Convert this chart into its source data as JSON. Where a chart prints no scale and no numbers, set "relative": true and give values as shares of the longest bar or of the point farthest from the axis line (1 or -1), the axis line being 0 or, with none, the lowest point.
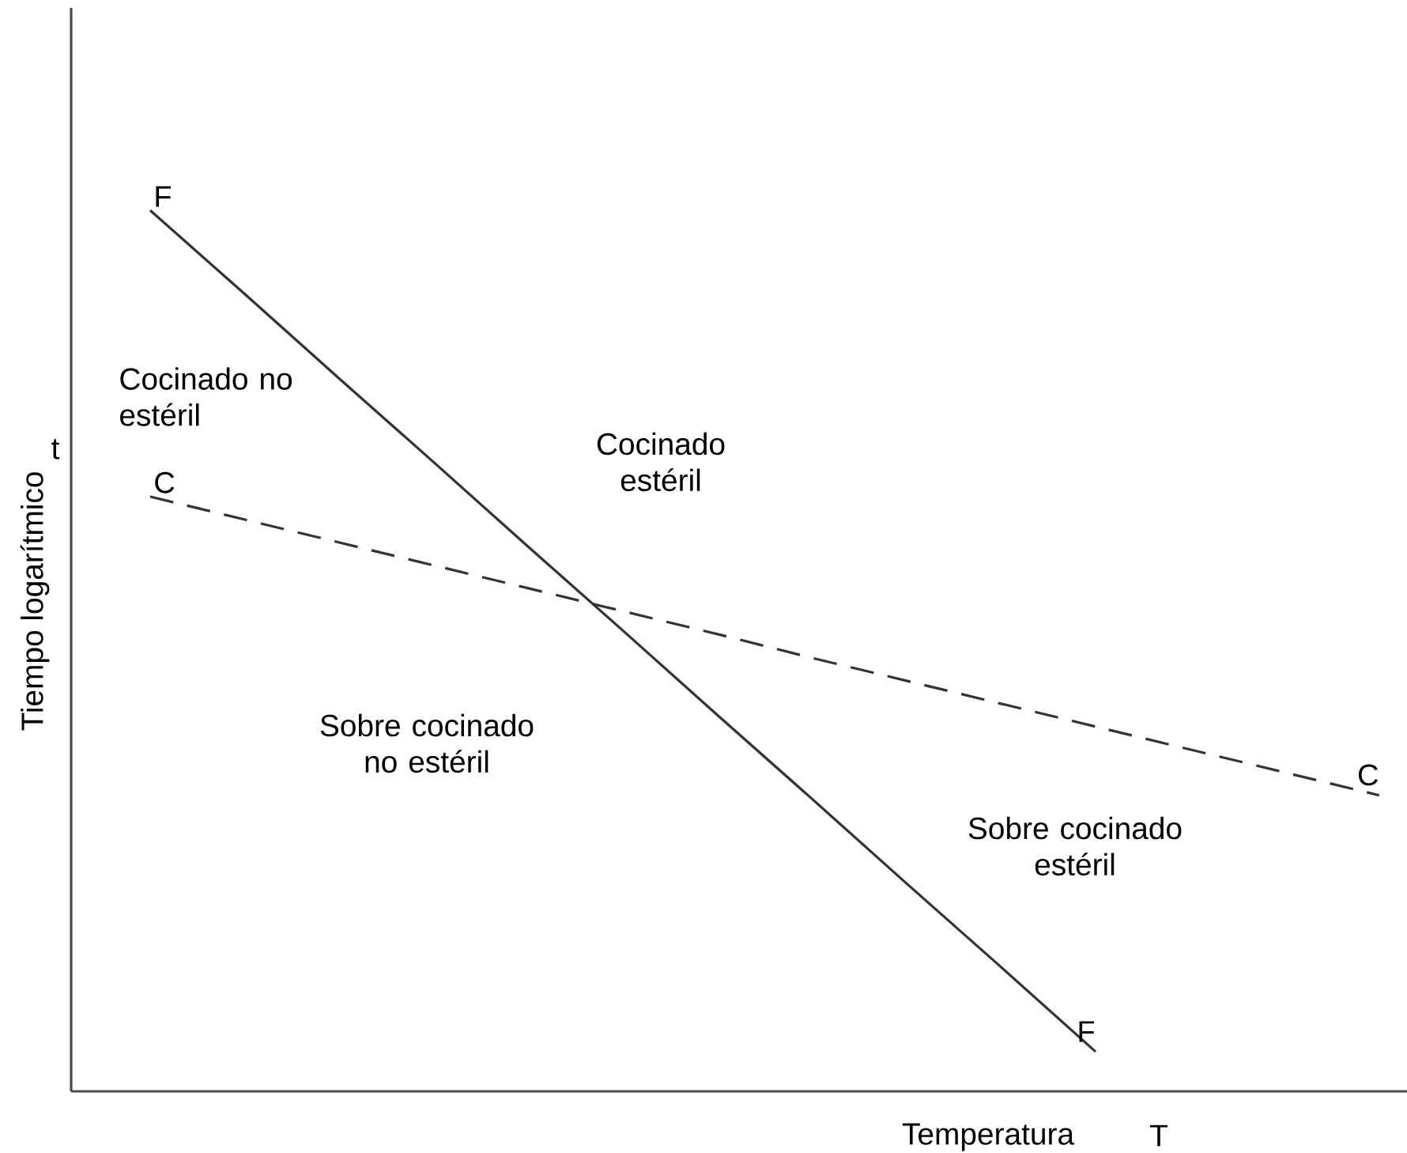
{
  "chart_data": {
    "type": "line",
    "relative": true,
    "xlabel": "Temperatura",
    "ylabel": "Tiempo logarítmico",
    "categories": [
      null,
      null,
      null,
      null,
      null,
      null,
      null,
      null,
      null,
      null,
      null,
      null,
      null,
      null
    ],
    "series": [
      {
        "name": "F",
        "color": "#333333",
        "line_style": "solid",
        "values": [
          1,
          0.905,
          0.809,
          0.714,
          0.618,
          0.523,
          0.427,
          0.332,
          0.236,
          0.141,
          0.045,
          null,
          null,
          null
        ]
      },
      {
        "name": "C",
        "color": "#333333",
        "line_style": "dashed",
        "values": [
          0.675,
          0.649,
          0.623,
          0.597,
          0.571,
          0.545,
          0.519,
          0.492,
          0.466,
          0.44,
          0.414,
          0.388,
          0.362,
          0.336
        ]
      }
    ],
    "annotations": [
      "Cocinado no estéril",
      "Cocinado estéril",
      "Sobre cocinado no estéril",
      "Sobre cocinado estéril",
      "t",
      "T"
    ]
  }
}
